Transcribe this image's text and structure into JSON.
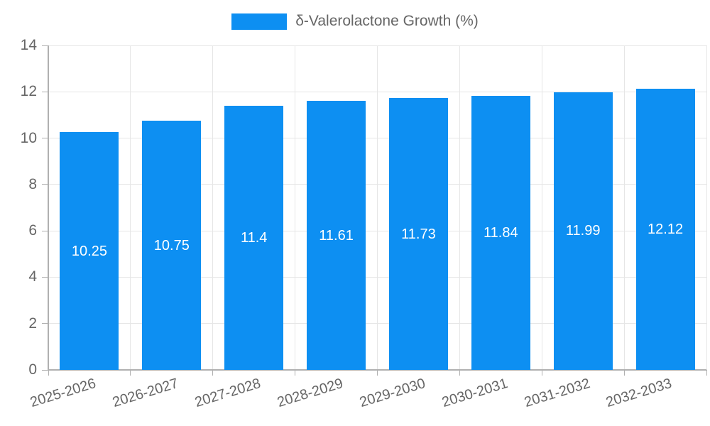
{
  "chart_data": {
    "type": "bar",
    "title": "",
    "legend": "δ-Valerolactone Growth (%)",
    "legend_position": "top",
    "categories": [
      "2025-2026",
      "2026-2027",
      "2027-2028",
      "2028-2029",
      "2029-2030",
      "2030-2031",
      "2031-2032",
      "2032-2033"
    ],
    "series": [
      {
        "name": "δ-Valerolactone Growth (%)",
        "values": [
          10.25,
          10.75,
          11.4,
          11.61,
          11.73,
          11.84,
          11.99,
          12.12
        ],
        "value_labels": [
          "10.25",
          "10.75",
          "11.4",
          "11.61",
          "11.73",
          "11.84",
          "11.99",
          "12.12"
        ]
      }
    ],
    "xlabel": "",
    "ylabel": "",
    "ylim": [
      0,
      14
    ],
    "yticks": [
      0,
      2,
      4,
      6,
      8,
      10,
      12,
      14
    ],
    "grid": true,
    "colors": {
      "bar": "#0d8ff2",
      "tick_text": "#666666",
      "grid_line": "#e6e6e6",
      "axis_line": "#b0b0b0",
      "value_text": "#ffffff",
      "background": "#ffffff"
    }
  }
}
